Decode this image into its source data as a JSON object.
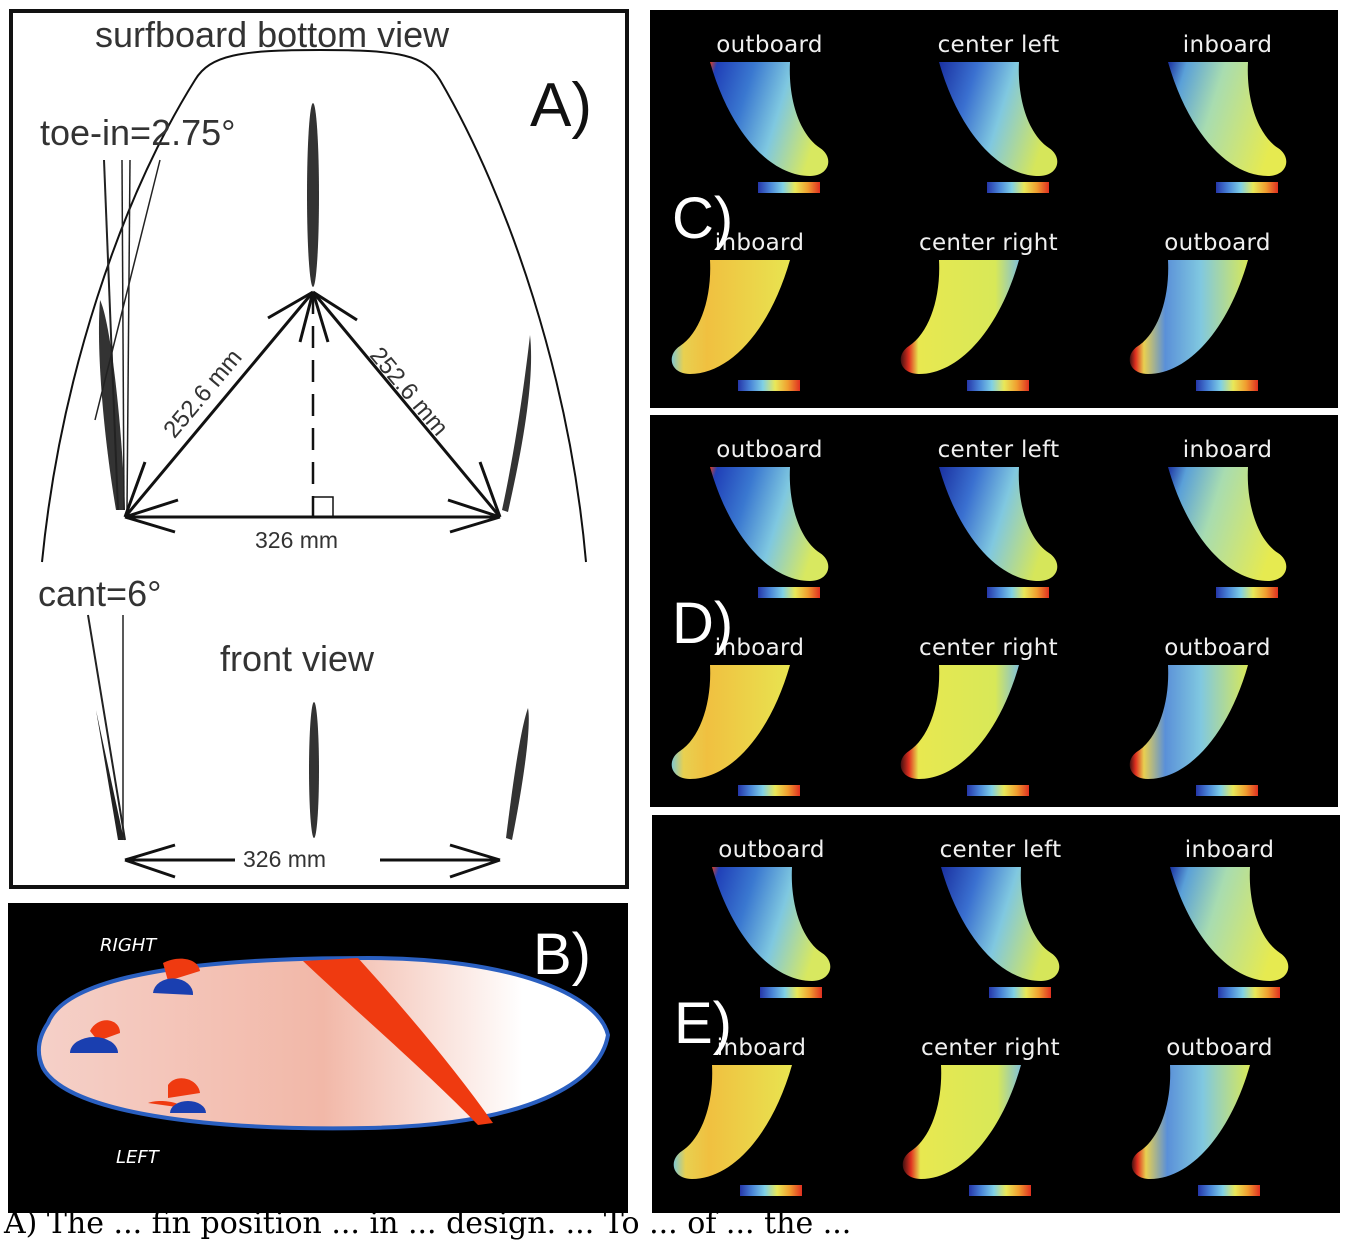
{
  "panel_a": {
    "letter": "A)",
    "title": "surfboard bottom view",
    "toe_in": "toe-in=2.75°",
    "diag_left": "252.6 mm",
    "diag_right": "252.6 mm",
    "width_top": "326 mm",
    "cant": "cant=6°",
    "front_view": "front view",
    "width_bottom": "326 mm"
  },
  "panel_b": {
    "letter": "B)",
    "right": "RIGHT",
    "left": "LEFT"
  },
  "panels": [
    {
      "letter": "C)",
      "top": [
        "outboard",
        "center left",
        "inboard"
      ],
      "bottom": [
        "inboard",
        "center right",
        "outboard"
      ]
    },
    {
      "letter": "D)",
      "top": [
        "outboard",
        "center left",
        "inboard"
      ],
      "bottom": [
        "inboard",
        "center right",
        "outboard"
      ]
    },
    {
      "letter": "E)",
      "top": [
        "outboard",
        "center left",
        "inboard"
      ],
      "bottom": [
        "inboard",
        "center right",
        "outboard"
      ]
    }
  ],
  "caption": "A) The ... fin position ... in ... design. ... To ... of ... the ..."
}
